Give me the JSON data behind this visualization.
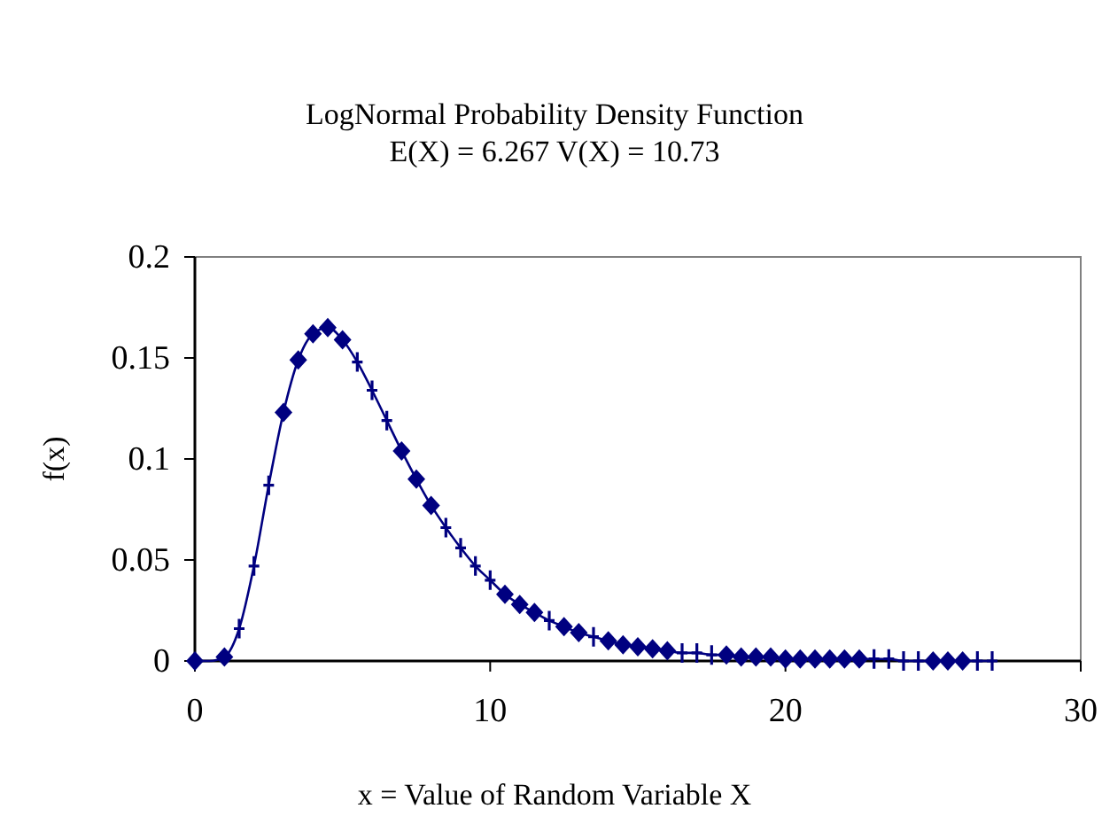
{
  "chart_data": {
    "type": "line",
    "title": "LogNormal Probability Density Function",
    "subtitle": "E(X) = 6.267  V(X) = 10.73",
    "xlabel": "x = Value of Random Variable X",
    "ylabel": "f(x)",
    "xlim": [
      0,
      30
    ],
    "xticks": [
      0,
      10,
      20,
      30
    ],
    "ylim": [
      0,
      0.2
    ],
    "yticks": [
      0,
      {
        "value": 0.05,
        "label": "0.05"
      },
      {
        "value": 0.1,
        "label": "0.1"
      },
      {
        "value": 0.15,
        "label": "0.15"
      },
      {
        "value": 0.2,
        "label": "0.2"
      }
    ],
    "grid": false,
    "series": [
      {
        "color": "#000080",
        "marker": "none",
        "x": [
          0,
          0.5,
          1,
          1.5,
          2,
          2.5,
          3,
          3.5,
          4,
          4.5,
          5,
          5.5,
          6,
          6.5,
          7,
          7.5,
          8,
          8.5,
          9,
          9.5,
          10,
          10.5,
          11,
          11.5,
          12,
          12.5,
          13,
          13.5,
          14,
          14.5,
          15,
          15.5,
          16,
          16.5,
          17,
          17.5,
          18,
          18.5,
          19,
          19.5,
          20,
          20.5,
          21,
          21.5,
          22,
          22.5,
          23,
          23.5,
          24,
          24.5,
          25,
          25.5,
          26,
          26.5,
          27
        ],
        "values": [
          0,
          0,
          0.002,
          0.016,
          0.047,
          0.087,
          0.123,
          0.149,
          0.162,
          0.165,
          0.159,
          0.148,
          0.134,
          0.119,
          0.104,
          0.09,
          0.077,
          0.066,
          0.056,
          0.047,
          0.04,
          0.033,
          0.028,
          0.024,
          0.02,
          0.017,
          0.014,
          0.012,
          0.01,
          0.008,
          0.007,
          0.006,
          0.005,
          0.004,
          0.004,
          0.003,
          0.003,
          0.002,
          0.002,
          0.002,
          0.001,
          0.001,
          0.001,
          0.001,
          0.001,
          0.001,
          0.001,
          0.001,
          0,
          0,
          0,
          0,
          0,
          0,
          0
        ]
      },
      {
        "type": "scatter",
        "color": "#000080",
        "marker": "diamond",
        "x": [
          0,
          1,
          3,
          3.5,
          4,
          4.5,
          5,
          7,
          7.5,
          8,
          10.5,
          11,
          11.5,
          12.5,
          13,
          14,
          14.5,
          15,
          15.5,
          16,
          18,
          18.5,
          19,
          19.5,
          20,
          20.5,
          21,
          21.5,
          22,
          22.5,
          25,
          25.5,
          26
        ],
        "values": [
          0,
          0.002,
          0.123,
          0.149,
          0.162,
          0.165,
          0.159,
          0.104,
          0.09,
          0.077,
          0.033,
          0.028,
          0.024,
          0.017,
          0.014,
          0.01,
          0.008,
          0.007,
          0.006,
          0.005,
          0.003,
          0.002,
          0.002,
          0.002,
          0.001,
          0.001,
          0.001,
          0.001,
          0.001,
          0.001,
          0,
          0,
          0
        ]
      },
      {
        "type": "scatter",
        "color": "#000080",
        "marker": "cross",
        "x": [
          1.5,
          2,
          2.5,
          5.5,
          6,
          6.5,
          8.5,
          9,
          9.5,
          10,
          12,
          13.5,
          16.5,
          17,
          17.5,
          23,
          23.5,
          24,
          24.5,
          26.5,
          27
        ],
        "values": [
          0.016,
          0.047,
          0.087,
          0.148,
          0.134,
          0.119,
          0.066,
          0.056,
          0.047,
          0.04,
          0.02,
          0.012,
          0.004,
          0.004,
          0.003,
          0.001,
          0.001,
          0,
          0,
          0,
          0
        ]
      }
    ]
  }
}
